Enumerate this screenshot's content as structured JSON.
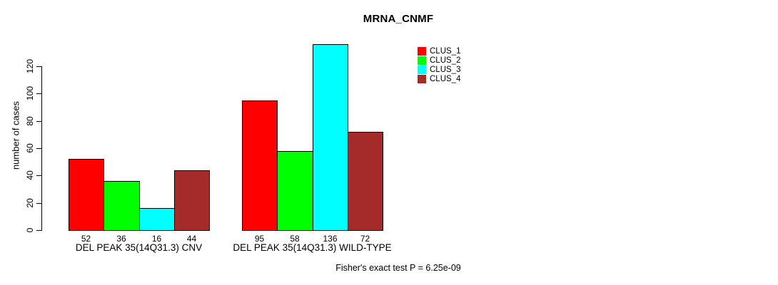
{
  "chart_data": {
    "type": "bar",
    "title": "MRNA_CNMF",
    "ylabel": "number of cases",
    "xlabel": "",
    "annotation": "Fisher's exact test P = 6.25e-09",
    "categories": [
      "CLUS_1",
      "CLUS_2",
      "CLUS_3",
      "CLUS_4"
    ],
    "groups": [
      {
        "label": "DEL PEAK 35(14Q31.3) CNV",
        "values": [
          52,
          36,
          16,
          44
        ]
      },
      {
        "label": "DEL PEAK 35(14Q31.3) WILD-TYPE",
        "values": [
          95,
          58,
          136,
          72
        ]
      }
    ],
    "series": [
      {
        "name": "CLUS_1",
        "color": "#FF0000"
      },
      {
        "name": "CLUS_2",
        "color": "#00FF00"
      },
      {
        "name": "CLUS_3",
        "color": "#00FFFF"
      },
      {
        "name": "CLUS_4",
        "color": "#A52A2A"
      }
    ],
    "yticks": [
      0,
      20,
      40,
      60,
      80,
      100,
      120
    ],
    "ylim": [
      0,
      136
    ],
    "grid": false,
    "legend_position": "top-right-inside",
    "bar_border_color": "#000000",
    "axis_color": "#000000"
  }
}
